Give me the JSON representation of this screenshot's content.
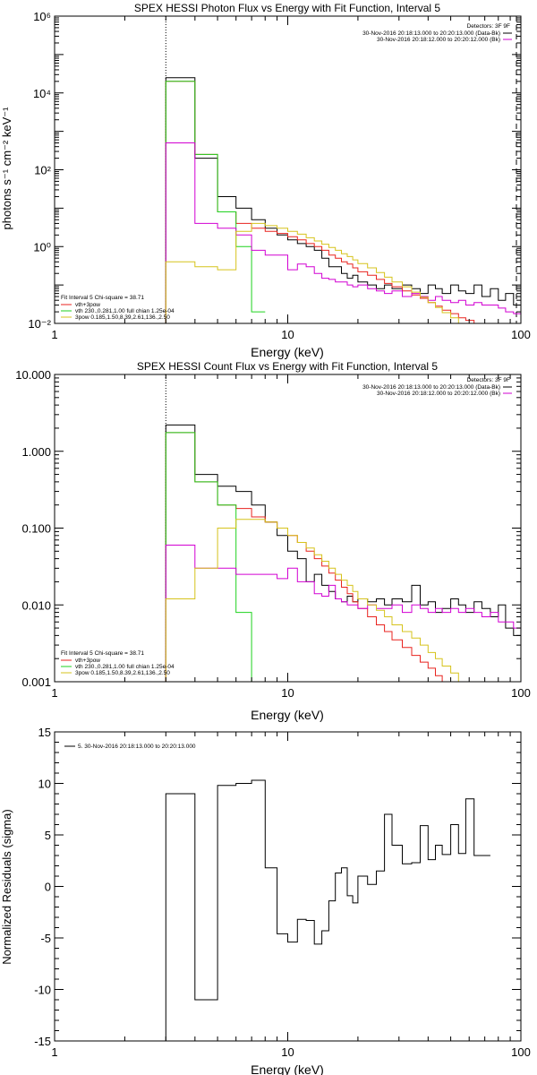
{
  "figure": {
    "background": "#ffffff",
    "colors": {
      "black": "#000000",
      "red": "#e8231f",
      "green": "#1fd21f",
      "magenta": "#d200d2",
      "yellow": "#d6c31c"
    }
  },
  "chart_data": [
    {
      "type": "line",
      "step": true,
      "title": "SPEX HESSI Photon Flux vs Energy with Fit Function, Interval 5",
      "xlabel": "Energy (keV)",
      "ylabel": "photons s⁻¹ cm⁻² keV⁻¹",
      "xscale": "log",
      "yscale": "log",
      "xlim": [
        1,
        100
      ],
      "ylim": [
        0.01,
        1000000
      ],
      "xticks": [
        1,
        10,
        100
      ],
      "xtick_labels": [
        "1",
        "10",
        "100"
      ],
      "yticks": [
        0.01,
        1,
        100,
        10000,
        1000000
      ],
      "ytick_labels": [
        "10⁻²",
        "10⁰",
        "10²",
        "10⁴",
        "10⁶"
      ],
      "vlines": [
        {
          "x": 3,
          "style": "dotted",
          "color": "#000000"
        },
        {
          "x": 100,
          "style": "dashed",
          "color": "#000000"
        }
      ],
      "legend_topright": {
        "header": "Detectors: 3F 9F",
        "entries": [
          {
            "text": "30-Nov-2016 20:18:13.000 to 20:20:13.000 (Data-Bk)",
            "color": "#000000"
          },
          {
            "text": "30-Nov-2016 20:18:12.000 to 20:20:12.000 (Bk)",
            "color": "#d200d2"
          }
        ]
      },
      "legend_bottomleft": {
        "header": "Fit Interval  5    Chi-square = 38.71",
        "entries": [
          {
            "text": "vth+3pow",
            "color": "#e8231f"
          },
          {
            "text": "vth 230.,0.281,1.00   full chian 1.25e-04",
            "color": "#1fd21f"
          },
          {
            "text": "3pow  0.185,1.50,8.39,2.61,136.,2.50",
            "color": "#d6c31c"
          }
        ]
      },
      "bin_edges": [
        3,
        4,
        5,
        6,
        7,
        8,
        9,
        10,
        11,
        12,
        13,
        14,
        15,
        16,
        17,
        18,
        19,
        20,
        22,
        24,
        26,
        28,
        31,
        34,
        37,
        40,
        43,
        46,
        50,
        54,
        58,
        63,
        68,
        74,
        80,
        86,
        93,
        100
      ],
      "series": [
        {
          "key": "black",
          "color": "#000000",
          "values": [
            25000,
            200,
            20,
            10,
            5,
            3,
            2,
            1.5,
            1.2,
            1.0,
            0.8,
            0.5,
            0.3,
            0.3,
            0.2,
            0.15,
            0.18,
            0.12,
            0.1,
            0.08,
            0.1,
            0.08,
            0.1,
            0.08,
            0.06,
            0.1,
            0.08,
            0.06,
            0.1,
            0.07,
            0.06,
            0.1,
            0.05,
            0.08,
            0.04,
            0.06,
            0.03
          ]
        },
        {
          "key": "red",
          "color": "#e8231f",
          "values": [
            20000,
            250,
            8,
            4,
            3,
            2.5,
            2.2,
            1.8,
            1.5,
            1.2,
            1.0,
            0.8,
            0.6,
            0.5,
            0.4,
            0.35,
            0.28,
            0.22,
            0.18,
            0.14,
            0.11,
            0.09,
            0.07,
            0.055,
            0.045,
            0.035,
            0.028,
            0.022,
            0.018,
            0.014,
            0.012,
            0.01
          ]
        },
        {
          "key": "green",
          "color": "#1fd21f",
          "values": [
            20000,
            250,
            8,
            1,
            0.02
          ]
        },
        {
          "key": "magenta",
          "color": "#d200d2",
          "values": [
            500,
            4,
            3,
            2,
            0.8,
            0.6,
            0.6,
            0.25,
            0.35,
            0.3,
            0.2,
            0.15,
            0.14,
            0.12,
            0.12,
            0.1,
            0.09,
            0.1,
            0.08,
            0.07,
            0.06,
            0.07,
            0.05,
            0.06,
            0.05,
            0.04,
            0.05,
            0.04,
            0.035,
            0.04,
            0.03,
            0.035,
            0.03,
            0.03,
            0.025,
            0.02,
            0.018
          ]
        },
        {
          "key": "yellow",
          "color": "#d6c31c",
          "values": [
            0.4,
            0.3,
            0.25,
            2.5,
            4,
            3.5,
            3,
            2.5,
            2.1,
            1.7,
            1.4,
            1.15,
            0.95,
            0.8,
            0.65,
            0.55,
            0.45,
            0.36,
            0.28,
            0.21,
            0.16,
            0.12,
            0.09,
            0.065,
            0.048,
            0.035,
            0.026,
            0.019,
            0.014,
            0.01,
            0.0075
          ]
        }
      ]
    },
    {
      "type": "line",
      "step": true,
      "title": "SPEX HESSI Count Flux vs Energy with Fit Function, Interval 5",
      "xlabel": "Energy (keV)",
      "ylabel": "",
      "xscale": "log",
      "yscale": "log",
      "xlim": [
        1,
        100
      ],
      "ylim": [
        0.001,
        10
      ],
      "xticks": [
        1,
        10,
        100
      ],
      "xtick_labels": [
        "1",
        "10",
        "100"
      ],
      "yticks": [
        0.001,
        0.01,
        0.1,
        1,
        10
      ],
      "ytick_labels": [
        "0.001",
        "0.010",
        "0.100",
        "1.000",
        "10.000"
      ],
      "vlines": [
        {
          "x": 3,
          "style": "dotted",
          "color": "#000000"
        }
      ],
      "legend_topright": {
        "header": "Detectors: 3F 9F",
        "entries": [
          {
            "text": "30-Nov-2016 20:18:13.000 to 20:20:13.000 (Data-Bk)",
            "color": "#000000"
          },
          {
            "text": "30-Nov-2016 20:18:12.000 to 20:20:12.000 (Bk)",
            "color": "#d200d2"
          }
        ]
      },
      "legend_bottomleft": {
        "header": "Fit Interval  5    Chi-square = 38.71",
        "entries": [
          {
            "text": "vth+3pow",
            "color": "#e8231f"
          },
          {
            "text": "vth 230.,0.281,1.00   full chian 1.25e-04",
            "color": "#1fd21f"
          },
          {
            "text": "3pow  0.185,1.50,8.39,2.61,136.,2.50",
            "color": "#d6c31c"
          }
        ]
      },
      "bin_edges": [
        3,
        4,
        5,
        6,
        7,
        8,
        9,
        10,
        11,
        12,
        13,
        14,
        15,
        16,
        17,
        18,
        19,
        20,
        22,
        24,
        26,
        28,
        31,
        34,
        37,
        40,
        43,
        46,
        50,
        54,
        58,
        63,
        68,
        74,
        80,
        86,
        93,
        100
      ],
      "series": [
        {
          "key": "black",
          "color": "#000000",
          "values": [
            2.2,
            0.5,
            0.35,
            0.3,
            0.2,
            0.12,
            0.08,
            0.05,
            0.04,
            0.02,
            0.025,
            0.018,
            0.015,
            0.012,
            0.011,
            0.013,
            0.011,
            0.012,
            0.011,
            0.012,
            0.01,
            0.012,
            0.011,
            0.018,
            0.01,
            0.011,
            0.008,
            0.009,
            0.012,
            0.01,
            0.008,
            0.011,
            0.009,
            0.007,
            0.01,
            0.005,
            0.004
          ]
        },
        {
          "key": "red",
          "color": "#e8231f",
          "values": [
            1.75,
            0.4,
            0.2,
            0.18,
            0.14,
            0.12,
            0.1,
            0.08,
            0.065,
            0.05,
            0.04,
            0.032,
            0.026,
            0.021,
            0.017,
            0.014,
            0.011,
            0.009,
            0.007,
            0.0055,
            0.0045,
            0.0035,
            0.0028,
            0.0022,
            0.0018,
            0.0015,
            0.0012,
            0.001
          ]
        },
        {
          "key": "green",
          "color": "#1fd21f",
          "values": [
            1.75,
            0.4,
            0.2,
            0.008,
            0.0005
          ]
        },
        {
          "key": "magenta",
          "color": "#d200d2",
          "values": [
            0.06,
            0.03,
            0.03,
            0.025,
            0.025,
            0.025,
            0.022,
            0.03,
            0.02,
            0.02,
            0.014,
            0.013,
            0.018,
            0.012,
            0.011,
            0.01,
            0.01,
            0.009,
            0.01,
            0.009,
            0.009,
            0.01,
            0.008,
            0.01,
            0.009,
            0.008,
            0.009,
            0.008,
            0.009,
            0.008,
            0.009,
            0.008,
            0.007,
            0.008,
            0.006,
            0.006,
            0.005
          ]
        },
        {
          "key": "yellow",
          "color": "#d6c31c",
          "values": [
            0.012,
            0.03,
            0.1,
            0.13,
            0.13,
            0.12,
            0.1,
            0.08,
            0.065,
            0.055,
            0.045,
            0.037,
            0.03,
            0.025,
            0.021,
            0.018,
            0.015,
            0.012,
            0.01,
            0.0085,
            0.007,
            0.0055,
            0.0045,
            0.0037,
            0.003,
            0.0024,
            0.002,
            0.0016,
            0.0013,
            0.001,
            0.0008
          ]
        }
      ]
    },
    {
      "type": "line",
      "step": true,
      "title": "",
      "xlabel": "Energy (keV)",
      "ylabel": "Normalized Residuals (sigma)",
      "xscale": "log",
      "yscale": "linear",
      "xlim": [
        1,
        100
      ],
      "ylim": [
        -15,
        15
      ],
      "xticks": [
        1,
        10,
        100
      ],
      "xtick_labels": [
        "1",
        "10",
        "100"
      ],
      "yticks": [
        -15,
        -10,
        -5,
        0,
        5,
        10,
        15
      ],
      "ytick_labels": [
        "-15",
        "-10",
        "-5",
        "0",
        "5",
        "10",
        "15"
      ],
      "legend_topleft": {
        "entries": [
          {
            "text": "5. 30-Nov-2016 20:18:13.000 to 20:20:13.000",
            "color": "#000000"
          }
        ]
      },
      "bin_edges": [
        3,
        4,
        5,
        6,
        7,
        8,
        9,
        10,
        11,
        12,
        13,
        14,
        15,
        16,
        17,
        18,
        19,
        20,
        22,
        24,
        26,
        28,
        31,
        34,
        37,
        40,
        43,
        46,
        50,
        54,
        58,
        63,
        68,
        74,
        80,
        86,
        93,
        100
      ],
      "series": [
        {
          "key": "black",
          "color": "#000000",
          "values": [
            9,
            -11,
            9.8,
            10,
            10.3,
            1.8,
            -4.6,
            -5.4,
            -3.2,
            -3.3,
            -5.6,
            -4.3,
            -1.4,
            1.3,
            1.8,
            -0.9,
            -1.6,
            1.0,
            0.2,
            1.5,
            7.0,
            4.0,
            2.2,
            2.3,
            5.9,
            2.6,
            4.0,
            3.1,
            6.0,
            3.2,
            8.5,
            3.0,
            3.0
          ]
        }
      ]
    }
  ]
}
